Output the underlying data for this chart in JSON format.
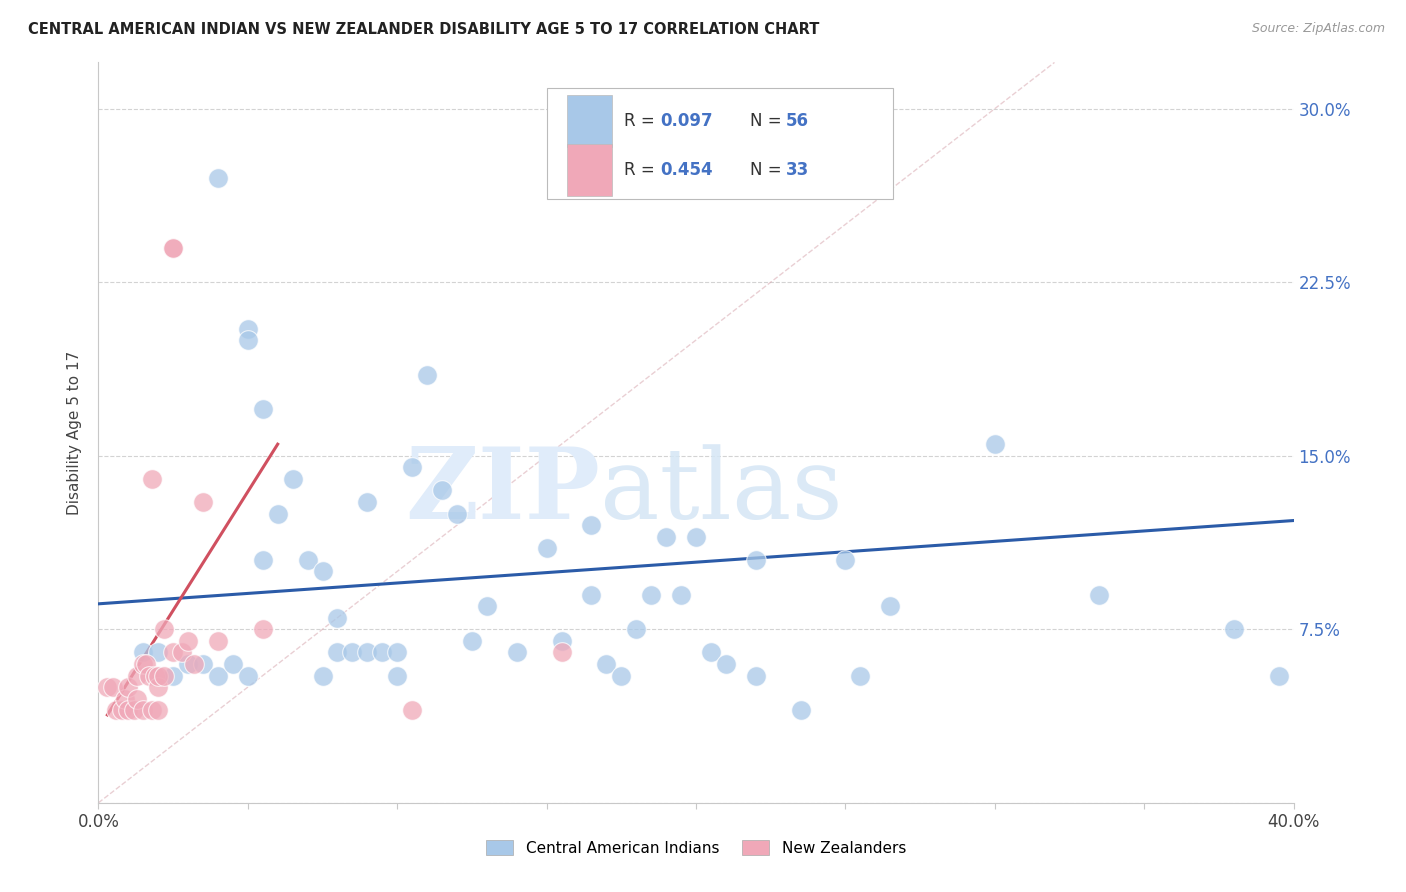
{
  "title": "CENTRAL AMERICAN INDIAN VS NEW ZEALANDER DISABILITY AGE 5 TO 17 CORRELATION CHART",
  "source": "Source: ZipAtlas.com",
  "ylabel": "Disability Age 5 to 17",
  "xlim": [
    0.0,
    0.4
  ],
  "ylim": [
    0.0,
    0.32
  ],
  "xticks": [
    0.0,
    0.05,
    0.1,
    0.15,
    0.2,
    0.25,
    0.3,
    0.35,
    0.4
  ],
  "xticklabels": [
    "0.0%",
    "",
    "",
    "",
    "",
    "",
    "",
    "",
    "40.0%"
  ],
  "yticks": [
    0.0,
    0.075,
    0.15,
    0.225,
    0.3
  ],
  "yticklabels_right": [
    "",
    "7.5%",
    "15.0%",
    "22.5%",
    "30.0%"
  ],
  "color_blue": "#A8C8E8",
  "color_pink": "#F0A8B8",
  "color_blue_line": "#2B5BA8",
  "color_pink_line": "#D05060",
  "color_diag_line": "#D8A8B0",
  "color_r_value": "#4472C4",
  "background_color": "#FFFFFF",
  "grid_color": "#C8C8C8",
  "blue_scatter_x": [
    0.04,
    0.05,
    0.05,
    0.055,
    0.06,
    0.065,
    0.07,
    0.075,
    0.075,
    0.08,
    0.08,
    0.085,
    0.09,
    0.09,
    0.095,
    0.1,
    0.1,
    0.105,
    0.11,
    0.115,
    0.12,
    0.125,
    0.13,
    0.14,
    0.15,
    0.155,
    0.165,
    0.165,
    0.17,
    0.175,
    0.18,
    0.185,
    0.19,
    0.195,
    0.2,
    0.205,
    0.21,
    0.22,
    0.22,
    0.235,
    0.25,
    0.255,
    0.265,
    0.015,
    0.02,
    0.025,
    0.03,
    0.035,
    0.04,
    0.045,
    0.05,
    0.055,
    0.3,
    0.335,
    0.38,
    0.395
  ],
  "blue_scatter_y": [
    0.27,
    0.205,
    0.2,
    0.105,
    0.125,
    0.14,
    0.105,
    0.1,
    0.055,
    0.08,
    0.065,
    0.065,
    0.065,
    0.13,
    0.065,
    0.065,
    0.055,
    0.145,
    0.185,
    0.135,
    0.125,
    0.07,
    0.085,
    0.065,
    0.11,
    0.07,
    0.12,
    0.09,
    0.06,
    0.055,
    0.075,
    0.09,
    0.115,
    0.09,
    0.115,
    0.065,
    0.06,
    0.055,
    0.105,
    0.04,
    0.105,
    0.055,
    0.085,
    0.065,
    0.065,
    0.055,
    0.06,
    0.06,
    0.055,
    0.06,
    0.055,
    0.17,
    0.155,
    0.09,
    0.075,
    0.055
  ],
  "pink_scatter_x": [
    0.003,
    0.005,
    0.006,
    0.008,
    0.009,
    0.01,
    0.01,
    0.012,
    0.013,
    0.013,
    0.015,
    0.015,
    0.016,
    0.017,
    0.018,
    0.018,
    0.019,
    0.02,
    0.02,
    0.02,
    0.022,
    0.022,
    0.025,
    0.025,
    0.025,
    0.028,
    0.03,
    0.032,
    0.035,
    0.04,
    0.055,
    0.105,
    0.155
  ],
  "pink_scatter_y": [
    0.05,
    0.05,
    0.04,
    0.04,
    0.045,
    0.04,
    0.05,
    0.04,
    0.045,
    0.055,
    0.04,
    0.06,
    0.06,
    0.055,
    0.04,
    0.14,
    0.055,
    0.04,
    0.05,
    0.055,
    0.055,
    0.075,
    0.24,
    0.24,
    0.065,
    0.065,
    0.07,
    0.06,
    0.13,
    0.07,
    0.075,
    0.04,
    0.065
  ],
  "blue_line_x": [
    0.0,
    0.4
  ],
  "blue_line_y": [
    0.086,
    0.122
  ],
  "pink_line_x": [
    0.003,
    0.06
  ],
  "pink_line_y": [
    0.038,
    0.155
  ],
  "diag_line_x": [
    0.0,
    0.32
  ],
  "diag_line_y": [
    0.0,
    0.32
  ]
}
